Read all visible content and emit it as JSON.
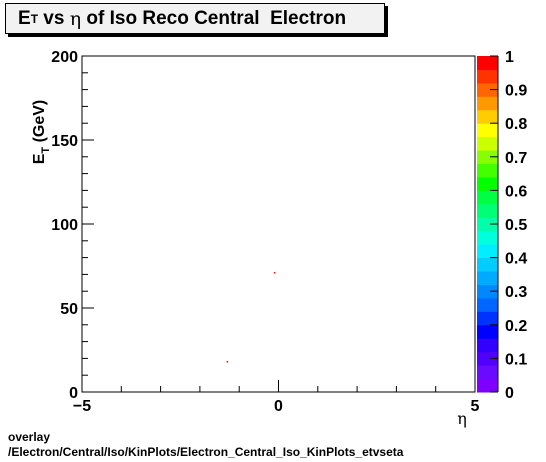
{
  "title": {
    "part1": "E",
    "sub": "T",
    "part2": " vs ",
    "greek": "η",
    "part3": " of Iso Reco Central  Electron"
  },
  "footer": {
    "line1": "overlay",
    "line2": "/Electron/Central/Iso/KinPlots/Electron_Central_Iso_KinPlots_etvseta"
  },
  "chart_data": {
    "type": "scatter",
    "title": "E_T vs η of Iso Reco Central  Electron",
    "xlabel": "η",
    "ylabel": "E_T (GeV)",
    "xlim": [
      -5,
      5
    ],
    "ylim": [
      0,
      200
    ],
    "x_ticks": [
      "-5",
      "0",
      "5"
    ],
    "y_ticks": [
      "0",
      "50",
      "100",
      "150",
      "200"
    ],
    "points": [
      {
        "x": -0.1,
        "y": 71
      },
      {
        "x": -1.3,
        "y": 18
      }
    ],
    "point_color": "#ff0000",
    "colorbar": {
      "min": 0,
      "max": 1,
      "labels": [
        "0",
        "0.1",
        "0.2",
        "0.3",
        "0.4",
        "0.5",
        "0.6",
        "0.7",
        "0.8",
        "0.9",
        "1"
      ],
      "colors": [
        "#7f00ff",
        "#6a0aff",
        "#5000ff",
        "#3300ff",
        "#0000ff",
        "#0033ff",
        "#0066ff",
        "#0088ff",
        "#00aaff",
        "#00ccff",
        "#00eeff",
        "#00ffdd",
        "#00ffaa",
        "#00ff77",
        "#00ff44",
        "#00ff00",
        "#44ff00",
        "#88ff00",
        "#ccff00",
        "#ffff00",
        "#ffcc00",
        "#ff9900",
        "#ff6600",
        "#ff3300",
        "#ff0000"
      ]
    }
  }
}
